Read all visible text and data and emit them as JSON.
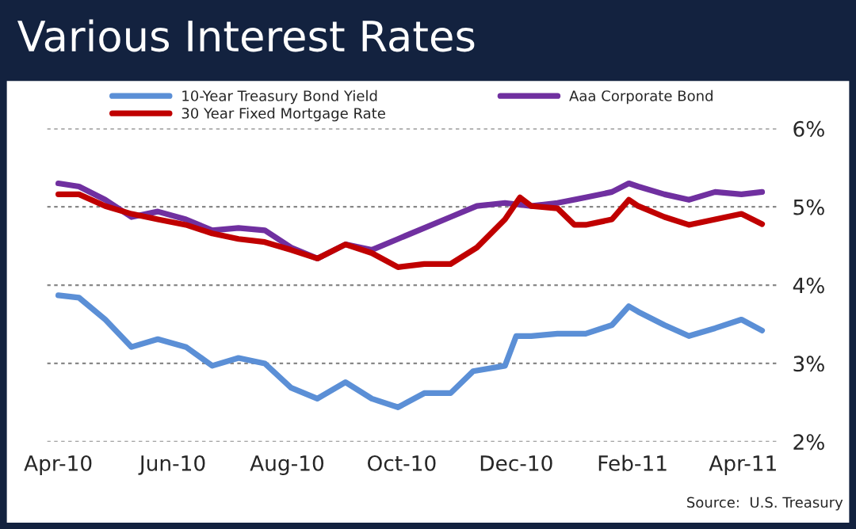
{
  "chart_data": {
    "type": "line",
    "title": "Various Interest Rates",
    "x": [
      "2010-04-01",
      "2010-04-12",
      "2010-04-26",
      "2010-05-10",
      "2010-05-24",
      "2010-06-08",
      "2010-06-22",
      "2010-07-06",
      "2010-07-20",
      "2010-08-03",
      "2010-08-17",
      "2010-09-01",
      "2010-09-15",
      "2010-09-29",
      "2010-10-13",
      "2010-10-27",
      "2010-11-10",
      "2010-11-25",
      "2010-12-09",
      "2010-12-23",
      "2011-01-07",
      "2011-01-21",
      "2011-01-30",
      "2011-02-04",
      "2011-02-18",
      "2011-03-03",
      "2011-03-17",
      "2011-03-31",
      "2011-04-11"
    ],
    "series": [
      {
        "name": "10-Year Treasury Bond Yield",
        "color": "#5b8fd6",
        "x": [
          "2010-04-01",
          "2010-04-12",
          "2010-04-26",
          "2010-05-10",
          "2010-05-24",
          "2010-06-08",
          "2010-06-22",
          "2010-07-06",
          "2010-07-20",
          "2010-08-03",
          "2010-08-17",
          "2010-09-01",
          "2010-09-15",
          "2010-09-29",
          "2010-10-13",
          "2010-10-27",
          "2010-11-08",
          "2010-11-25",
          "2010-12-01",
          "2010-12-09",
          "2010-12-23",
          "2011-01-07",
          "2011-01-21",
          "2011-01-30",
          "2011-02-04",
          "2011-02-18",
          "2011-03-03",
          "2011-03-17",
          "2011-03-31",
          "2011-04-11"
        ],
        "values": [
          3.87,
          3.84,
          3.56,
          3.21,
          3.31,
          3.21,
          2.97,
          3.07,
          3.0,
          2.69,
          2.55,
          2.76,
          2.55,
          2.44,
          2.62,
          2.62,
          2.9,
          2.97,
          3.35,
          3.35,
          3.38,
          3.38,
          3.49,
          3.73,
          3.66,
          3.49,
          3.35,
          3.45,
          3.56,
          3.42
        ]
      },
      {
        "name": "Aaa Corporate Bond",
        "color": "#7030a0",
        "values": [
          5.3,
          5.26,
          5.09,
          4.87,
          4.94,
          4.84,
          4.7,
          4.73,
          4.7,
          4.48,
          4.34,
          4.52,
          4.45,
          4.59,
          4.73,
          4.87,
          5.01,
          5.05,
          5.01,
          5.05,
          5.12,
          5.19,
          5.3,
          5.26,
          5.16,
          5.09,
          5.19,
          5.16,
          5.19
        ]
      },
      {
        "name": "30 Year Fixed Mortgage Rate",
        "color": "#c00000",
        "x": [
          "2010-04-01",
          "2010-04-12",
          "2010-04-26",
          "2010-05-10",
          "2010-05-24",
          "2010-06-08",
          "2010-06-22",
          "2010-07-06",
          "2010-07-20",
          "2010-08-03",
          "2010-08-17",
          "2010-09-01",
          "2010-09-15",
          "2010-09-29",
          "2010-10-13",
          "2010-10-27",
          "2010-11-10",
          "2010-11-25",
          "2010-12-03",
          "2010-12-09",
          "2010-12-23",
          "2011-01-01",
          "2011-01-07",
          "2011-01-21",
          "2011-01-30",
          "2011-02-04",
          "2011-02-18",
          "2011-03-03",
          "2011-03-17",
          "2011-03-31",
          "2011-04-11"
        ],
        "values": [
          5.16,
          5.16,
          5.01,
          4.91,
          4.84,
          4.77,
          4.66,
          4.59,
          4.55,
          4.45,
          4.34,
          4.52,
          4.41,
          4.23,
          4.27,
          4.27,
          4.48,
          4.84,
          5.12,
          5.01,
          4.98,
          4.77,
          4.77,
          4.84,
          5.09,
          5.01,
          4.87,
          4.77,
          4.84,
          4.91,
          4.78
        ]
      }
    ],
    "xlim": [
      "2010-03-26",
      "2011-04-20"
    ],
    "xticks": [
      {
        "value": "2010-04-01",
        "label": "Apr-10"
      },
      {
        "value": "2010-06-01",
        "label": "Jun-10"
      },
      {
        "value": "2010-08-01",
        "label": "Aug-10"
      },
      {
        "value": "2010-10-01",
        "label": "Oct-10"
      },
      {
        "value": "2010-12-01",
        "label": "Dec-10"
      },
      {
        "value": "2011-02-01",
        "label": "Feb-11"
      },
      {
        "value": "2011-04-01",
        "label": "Apr-11"
      }
    ],
    "ylim": [
      2,
      6
    ],
    "yticks": [
      {
        "value": 2,
        "label": "2%"
      },
      {
        "value": 3,
        "label": "3%"
      },
      {
        "value": 4,
        "label": "4%"
      },
      {
        "value": 5,
        "label": "5%"
      },
      {
        "value": 6,
        "label": "6%"
      }
    ],
    "grid": "y",
    "legend": "top",
    "line_style": "solid",
    "marker": "none",
    "annotations": [
      "Source:  U.S. Treasury"
    ]
  }
}
